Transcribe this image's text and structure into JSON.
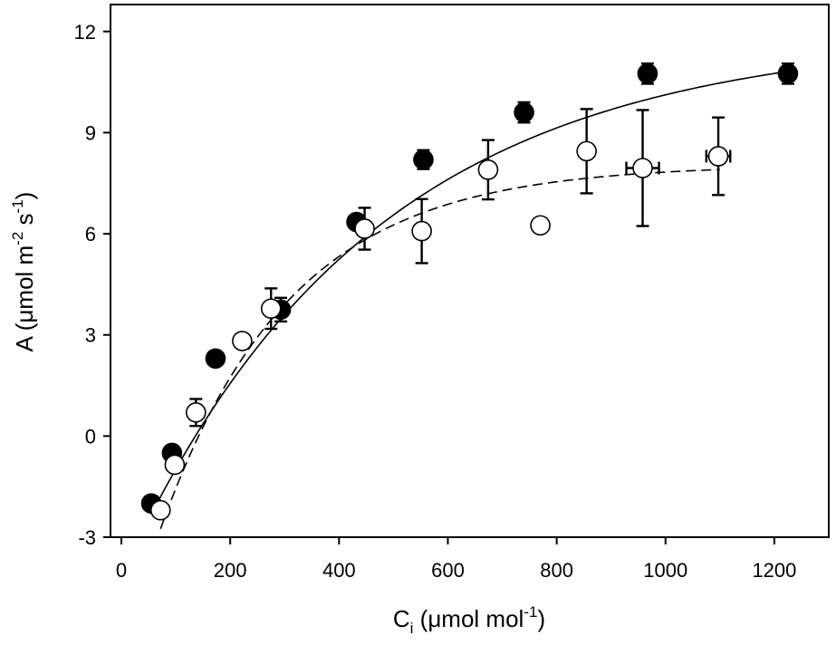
{
  "chart_data": {
    "type": "scatter",
    "title": "",
    "xlabel": {
      "main": "C",
      "sub": "i",
      "units_open": " (μmol mol",
      "units_sup": "-1",
      "units_close": ")"
    },
    "ylabel": {
      "p1": "A (μmol m",
      "sup1": "-2",
      "p2": " s",
      "sup2": "-1",
      "p3": ")"
    },
    "xlim": [
      -20,
      1300
    ],
    "ylim": [
      -3,
      12.8
    ],
    "xticks": [
      0,
      200,
      400,
      600,
      800,
      1000,
      1200
    ],
    "yticks": [
      -3,
      0,
      3,
      6,
      9,
      12
    ],
    "xtick_labels": [
      "0",
      "200",
      "400",
      "600",
      "800",
      "1000",
      "1200"
    ],
    "ytick_labels": [
      "-3",
      "0",
      "3",
      "6",
      "9",
      "12"
    ],
    "grid": false,
    "series": [
      {
        "name": "filled",
        "marker": "filled-circle",
        "fill": "#000000",
        "points": [
          {
            "x": 55,
            "y": -2.0,
            "yerr": 0.15
          },
          {
            "x": 93,
            "y": -0.5,
            "yerr": 0.1
          },
          {
            "x": 173,
            "y": 2.3,
            "yerr": 0.1
          },
          {
            "x": 293,
            "y": 3.75,
            "yerr": 0.35
          },
          {
            "x": 432,
            "y": 6.35,
            "yerr": 0.15
          },
          {
            "x": 555,
            "y": 8.2,
            "yerr": 0.28
          },
          {
            "x": 740,
            "y": 9.6,
            "yerr": 0.3
          },
          {
            "x": 967,
            "y": 10.75,
            "yerr": 0.3
          },
          {
            "x": 1225,
            "y": 10.75,
            "yerr": 0.3
          }
        ]
      },
      {
        "name": "open",
        "marker": "open-circle",
        "fill": "#ffffff",
        "points": [
          {
            "x": 72,
            "y": -2.2,
            "yerr": 0
          },
          {
            "x": 98,
            "y": -0.85,
            "yerr": 0
          },
          {
            "x": 137,
            "y": 0.7,
            "yerr": 0.4
          },
          {
            "x": 222,
            "y": 2.82,
            "yerr": 0
          },
          {
            "x": 275,
            "y": 3.78,
            "yerr": 0.6
          },
          {
            "x": 447,
            "y": 6.15,
            "yerr": 0.62
          },
          {
            "x": 552,
            "y": 6.08,
            "yerr": 0.95
          },
          {
            "x": 674,
            "y": 7.9,
            "yerr": 0.88
          },
          {
            "x": 770,
            "y": 6.25,
            "yerr": 0
          },
          {
            "x": 855,
            "y": 8.45,
            "yerr": 1.25
          },
          {
            "x": 958,
            "y": 7.95,
            "yerr": 1.72,
            "xerr": 30
          },
          {
            "x": 1097,
            "y": 8.3,
            "yerr": 1.15,
            "xerr": 22
          }
        ]
      }
    ],
    "fits": [
      {
        "name": "filled-fit",
        "style": "solid",
        "x_start": 55,
        "x_end": 1225,
        "Amax": 11.9,
        "c0": 136,
        "k": 0.0022
      },
      {
        "name": "open-fit",
        "style": "dashed",
        "x_start": 72,
        "x_end": 1100,
        "Amax": 8.05,
        "c0": 142,
        "k": 0.0042
      }
    ]
  }
}
